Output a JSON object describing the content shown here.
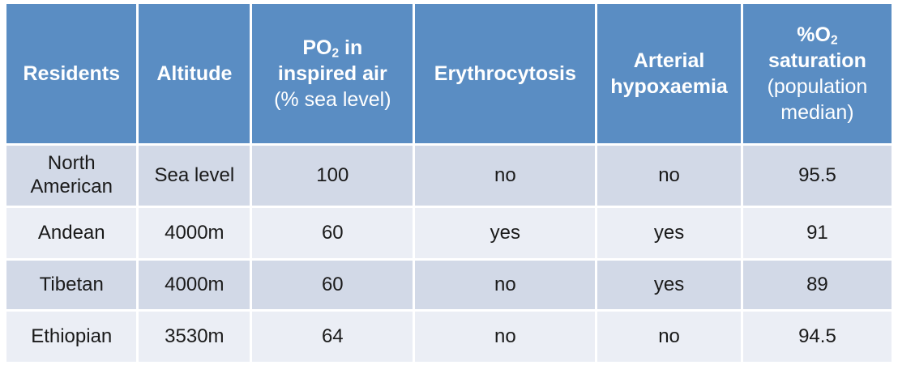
{
  "chart_data": {
    "type": "table",
    "title": "",
    "columns": [
      "Residents",
      "Altitude",
      "PO2 in inspired air (% sea level)",
      "Erythrocytosis",
      "Arterial hypoxaemia",
      "%O2 saturation (population median)"
    ],
    "rows": [
      [
        "North American",
        "Sea level",
        "100",
        "no",
        "no",
        "95.5"
      ],
      [
        "Andean",
        "4000m",
        "60",
        "yes",
        "yes",
        "91"
      ],
      [
        "Tibetan",
        "4000m",
        "60",
        "no",
        "yes",
        "89"
      ],
      [
        "Ethiopian",
        "3530m",
        "64",
        "no",
        "no",
        "94.5"
      ]
    ],
    "layout_hints": {
      "header_position": "top",
      "row_banding": [
        "dark",
        "light",
        "dark",
        "light"
      ],
      "grid": "white gaps between cells",
      "alignment": "center"
    }
  },
  "header_segments": [
    [
      {
        "t": "Residents",
        "b": true
      }
    ],
    [
      {
        "t": "Altitude",
        "b": true
      }
    ],
    [
      {
        "t": "PO",
        "b": true
      },
      {
        "t": "2",
        "b": true,
        "sub": true
      },
      {
        "t": " in\ninspired air\n",
        "b": true
      },
      {
        "t": "(% sea level)",
        "b": false
      }
    ],
    [
      {
        "t": "Erythrocytosis",
        "b": true
      }
    ],
    [
      {
        "t": "Arterial\nhypoxaemia",
        "b": true
      }
    ],
    [
      {
        "t": "%O",
        "b": true
      },
      {
        "t": "2",
        "b": true,
        "sub": true
      },
      {
        "t": "\nsaturation\n",
        "b": true
      },
      {
        "t": "(population\nmedian)",
        "b": false
      }
    ]
  ],
  "style": {
    "header_bg": "#5a8dc3",
    "header_text": "#ffffff",
    "row_band_dark": "#d2d9e7",
    "row_band_light": "#ebeef5",
    "body_text": "#1a1a1a",
    "gap_color": "#ffffff"
  }
}
